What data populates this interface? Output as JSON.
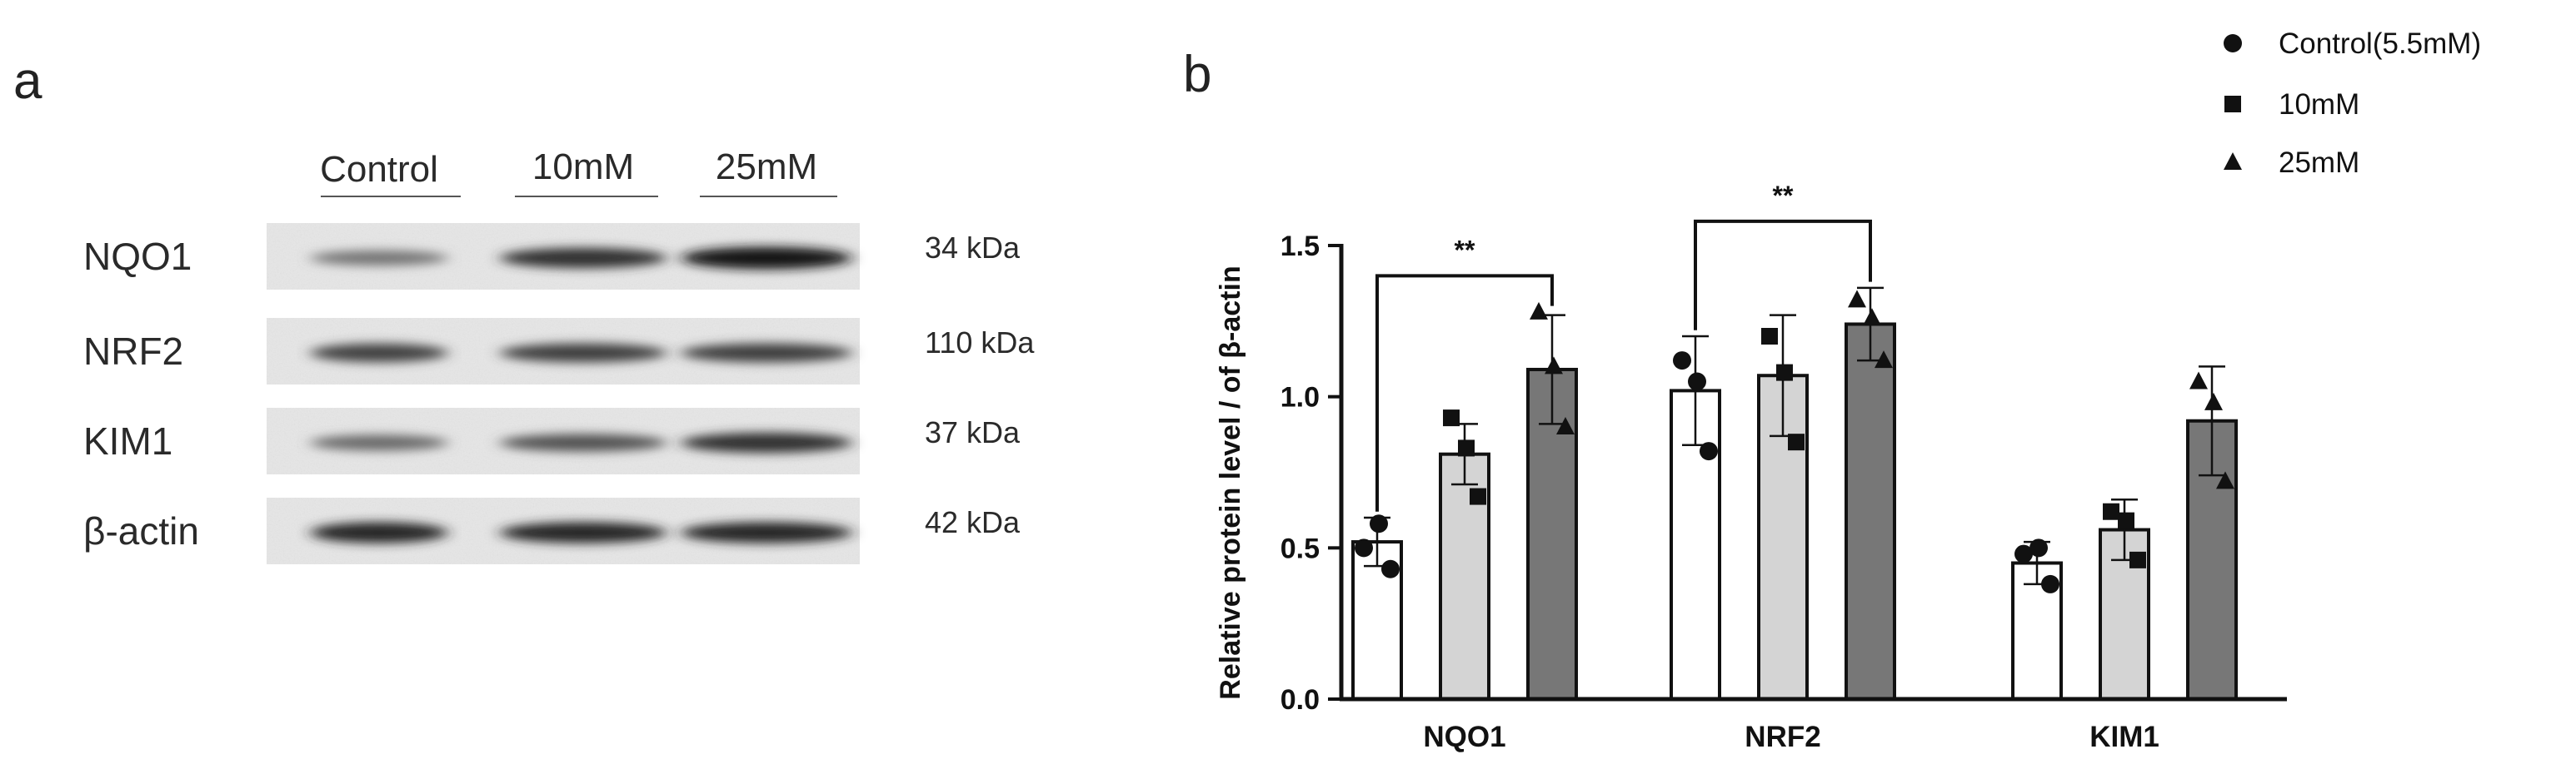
{
  "panel_a": {
    "letter": "a",
    "lanes": [
      "Control",
      "10mM",
      "25mM"
    ],
    "blots": [
      {
        "protein": "NQO1",
        "kda": "34 kDa",
        "intensities": [
          0.45,
          0.8,
          0.95
        ]
      },
      {
        "protein": "NRF2",
        "kda": "110 kDa",
        "intensities": [
          0.7,
          0.72,
          0.72
        ]
      },
      {
        "protein": "KIM1",
        "kda": "37 kDa",
        "intensities": [
          0.5,
          0.62,
          0.8
        ]
      },
      {
        "protein": "β-actin",
        "kda": "42 kDa",
        "intensities": [
          0.85,
          0.85,
          0.85
        ]
      }
    ]
  },
  "panel_b": {
    "letter": "b"
  },
  "chart_data": {
    "type": "bar",
    "title": "",
    "xlabel": "",
    "ylabel": "Relative protein level / of β-actin",
    "ylim": [
      0,
      1.5
    ],
    "yticks": [
      "0.0",
      "0.5",
      "1.0",
      "1.5"
    ],
    "categories": [
      "NQO1",
      "NRF2",
      "KIM1"
    ],
    "legend_position": "top-right",
    "series": [
      {
        "name": "Control(5.5mM)",
        "marker": "circle",
        "color": "#ffffff",
        "values": [
          0.52,
          1.02,
          0.45
        ],
        "sd": [
          0.08,
          0.18,
          0.07
        ],
        "points": [
          [
            0.5,
            0.58,
            0.43
          ],
          [
            1.12,
            1.05,
            0.82
          ],
          [
            0.48,
            0.5,
            0.38
          ]
        ]
      },
      {
        "name": "10mM",
        "marker": "square",
        "color": "#d4d4d4",
        "values": [
          0.81,
          1.07,
          0.56
        ],
        "sd": [
          0.1,
          0.2,
          0.1
        ],
        "points": [
          [
            0.93,
            0.83,
            0.67
          ],
          [
            1.2,
            1.08,
            0.85
          ],
          [
            0.62,
            0.59,
            0.46
          ]
        ]
      },
      {
        "name": "25mM",
        "marker": "triangle",
        "color": "#777777",
        "values": [
          1.09,
          1.24,
          0.92
        ],
        "sd": [
          0.18,
          0.12,
          0.18
        ],
        "points": [
          [
            1.28,
            1.1,
            0.9
          ],
          [
            1.32,
            1.26,
            1.12
          ],
          [
            1.05,
            0.98,
            0.72
          ]
        ]
      }
    ],
    "significance": [
      {
        "category": "NQO1",
        "from": "Control(5.5mM)",
        "to": "25mM",
        "label": "**"
      },
      {
        "category": "NRF2",
        "from": "Control(5.5mM)",
        "to": "25mM",
        "label": "**"
      }
    ]
  }
}
